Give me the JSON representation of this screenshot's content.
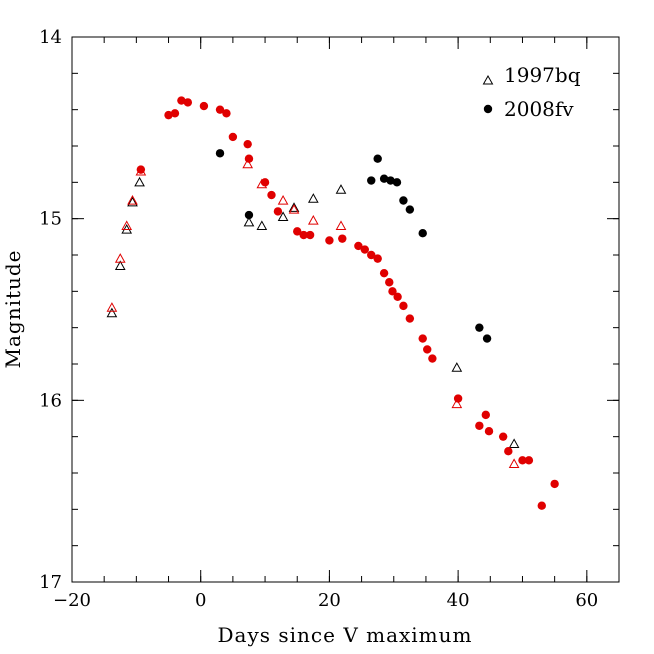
{
  "chart_data": {
    "type": "scatter",
    "title": "",
    "xlabel": "Days since V maximum",
    "ylabel": "Magnitude",
    "xlim": [
      -20,
      65
    ],
    "ylim": [
      14,
      17
    ],
    "y_inverted": true,
    "x_major_ticks": [
      -20,
      0,
      20,
      40,
      60
    ],
    "x_tick_labels": [
      "−20",
      "0",
      "20",
      "40",
      "60"
    ],
    "x_minor_step": 5,
    "y_major_ticks": [
      14,
      15,
      16,
      17
    ],
    "y_tick_labels": [
      "14",
      "15",
      "16",
      "17"
    ],
    "y_minor_step": 0.2,
    "grid": false,
    "legend": {
      "position": "top-right"
    },
    "series": [
      {
        "name": "1997bq",
        "marker": "open-triangle",
        "color": "#000000",
        "points": [
          [
            -13.8,
            15.52
          ],
          [
            -12.5,
            15.26
          ],
          [
            -11.5,
            15.06
          ],
          [
            -10.6,
            14.91
          ],
          [
            -9.5,
            14.8
          ],
          [
            7.5,
            15.02
          ],
          [
            9.5,
            15.04
          ],
          [
            12.8,
            14.99
          ],
          [
            14.5,
            14.94
          ],
          [
            17.5,
            14.89
          ],
          [
            21.8,
            14.84
          ],
          [
            39.8,
            15.82
          ],
          [
            48.7,
            16.24
          ]
        ]
      },
      {
        "name": "",
        "marker": "open-triangle",
        "color": "#e00000",
        "points": [
          [
            -13.8,
            15.49
          ],
          [
            -12.5,
            15.22
          ],
          [
            -11.5,
            15.04
          ],
          [
            -10.6,
            14.9
          ],
          [
            -9.3,
            14.74
          ],
          [
            7.3,
            14.7
          ],
          [
            9.5,
            14.81
          ],
          [
            12.8,
            14.9
          ],
          [
            14.5,
            14.95
          ],
          [
            17.5,
            15.01
          ],
          [
            21.8,
            15.04
          ],
          [
            39.8,
            16.02
          ],
          [
            48.7,
            16.35
          ]
        ]
      },
      {
        "name": "2008fv",
        "marker": "filled-circle",
        "color": "#000000",
        "points": [
          [
            3.0,
            14.64
          ],
          [
            7.5,
            14.98
          ],
          [
            26.5,
            14.79
          ],
          [
            27.5,
            14.67
          ],
          [
            28.5,
            14.78
          ],
          [
            29.5,
            14.79
          ],
          [
            30.5,
            14.8
          ],
          [
            31.5,
            14.9
          ],
          [
            32.5,
            14.95
          ],
          [
            34.5,
            15.08
          ],
          [
            43.3,
            15.6
          ],
          [
            44.5,
            15.66
          ]
        ]
      },
      {
        "name": "",
        "marker": "filled-circle",
        "color": "#e00000",
        "points": [
          [
            -9.3,
            14.73
          ],
          [
            -5.0,
            14.43
          ],
          [
            -4.0,
            14.42
          ],
          [
            -3.0,
            14.35
          ],
          [
            -2.0,
            14.36
          ],
          [
            0.5,
            14.38
          ],
          [
            3.0,
            14.4
          ],
          [
            4.0,
            14.42
          ],
          [
            5.0,
            14.55
          ],
          [
            7.3,
            14.59
          ],
          [
            7.5,
            14.67
          ],
          [
            10.0,
            14.8
          ],
          [
            11.0,
            14.87
          ],
          [
            12.0,
            14.96
          ],
          [
            15.0,
            15.07
          ],
          [
            16.0,
            15.09
          ],
          [
            17.0,
            15.09
          ],
          [
            20.0,
            15.12
          ],
          [
            22.0,
            15.11
          ],
          [
            24.5,
            15.15
          ],
          [
            25.5,
            15.17
          ],
          [
            26.5,
            15.2
          ],
          [
            27.5,
            15.22
          ],
          [
            28.5,
            15.3
          ],
          [
            29.3,
            15.35
          ],
          [
            29.8,
            15.4
          ],
          [
            30.6,
            15.43
          ],
          [
            31.5,
            15.48
          ],
          [
            32.5,
            15.55
          ],
          [
            34.5,
            15.66
          ],
          [
            35.2,
            15.72
          ],
          [
            36.0,
            15.77
          ],
          [
            40.0,
            15.99
          ],
          [
            43.3,
            16.14
          ],
          [
            44.3,
            16.08
          ],
          [
            44.8,
            16.17
          ],
          [
            47.0,
            16.2
          ],
          [
            47.8,
            16.28
          ],
          [
            50.0,
            16.33
          ],
          [
            51.0,
            16.33
          ],
          [
            53.0,
            16.58
          ],
          [
            55.0,
            16.46
          ]
        ]
      }
    ]
  }
}
